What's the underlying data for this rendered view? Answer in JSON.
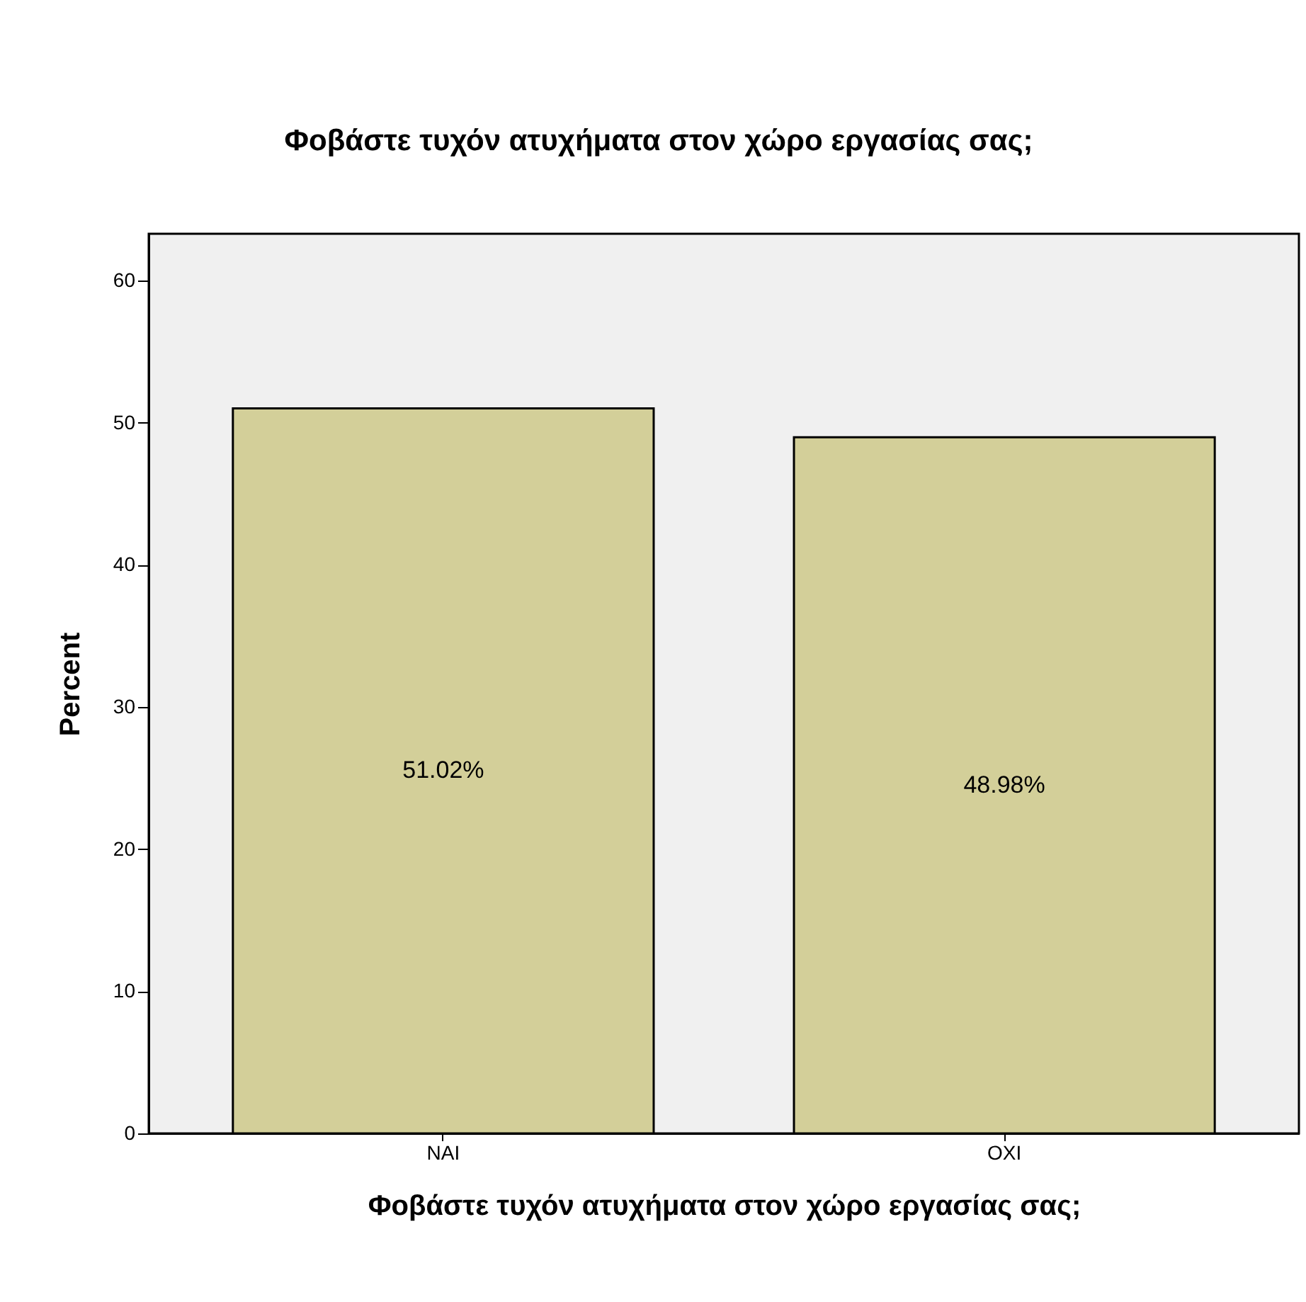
{
  "chart_data": {
    "type": "bar",
    "title": "Φοβάστε τυχόν ατυχήματα στον χώρο εργασίας σας;",
    "xlabel": "Φοβάστε τυχόν ατυχήματα στον χώρο εργασίας σας;",
    "ylabel": "Percent",
    "categories": [
      "NAI",
      "OXI"
    ],
    "values": [
      51.02,
      48.98
    ],
    "value_labels": [
      "51.02%",
      "48.98%"
    ],
    "color": "#d3cf99",
    "ylim": [
      0,
      63.3
    ],
    "yticks": [
      0,
      10,
      20,
      30,
      40,
      50,
      60
    ],
    "grid": false
  }
}
